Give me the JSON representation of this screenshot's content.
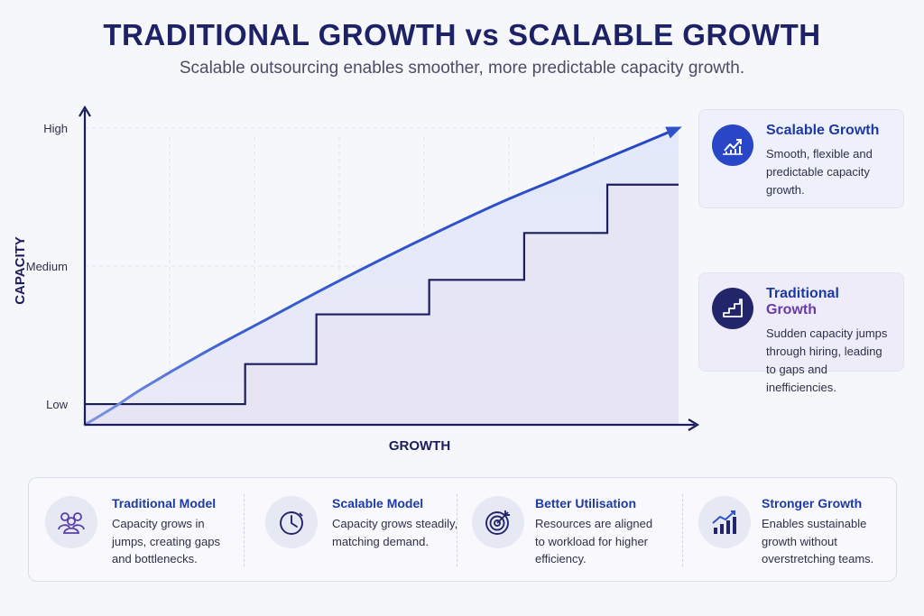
{
  "header": {
    "title": "TRADITIONAL GROWTH vs SCALABLE GROWTH",
    "subtitle": "Scalable outsourcing enables smoother, more predictable capacity growth."
  },
  "chart_data": {
    "type": "line",
    "xlabel": "GROWTH",
    "ylabel": "CAPACITY",
    "y_tick_labels": [
      "Low",
      "Medium",
      "High"
    ],
    "y_tick_values": [
      1,
      2,
      3
    ],
    "xlim": [
      0,
      10
    ],
    "ylim": [
      0.85,
      3.0
    ],
    "grid": true,
    "series": [
      {
        "name": "Scalable Growth",
        "style": "smooth",
        "color": "#2f52c9",
        "x": [
          0,
          0.5,
          1,
          2,
          3,
          4,
          5,
          6,
          7,
          8,
          9,
          10
        ],
        "y": [
          0.85,
          0.98,
          1.12,
          1.37,
          1.6,
          1.83,
          2.05,
          2.26,
          2.46,
          2.64,
          2.82,
          3.0
        ]
      },
      {
        "name": "Traditional Growth",
        "style": "step",
        "color": "#1c1d5e",
        "x": [
          0,
          2.7,
          3.9,
          5.8,
          7.4,
          8.8,
          10
        ],
        "y": [
          1.0,
          1.29,
          1.65,
          1.9,
          2.24,
          2.59,
          2.59
        ]
      }
    ]
  },
  "legend": [
    {
      "title_main": "Scalable Growth",
      "title_accent": "",
      "desc": "Smooth, flexible and predictable capacity growth.",
      "icon": "trend-up-icon",
      "color": "#2946c7"
    },
    {
      "title_main": "Traditional ",
      "title_accent": "Growth",
      "desc": "Sudden capacity jumps through hiring, leading to gaps and inefficiencies.",
      "icon": "stairs-icon",
      "color": "#23256b"
    }
  ],
  "features": [
    {
      "title": "Traditional Model",
      "desc": "Capacity grows in jumps, creating gaps and bottlenecks.",
      "icon": "team-icon"
    },
    {
      "title": "Scalable Model",
      "desc": "Capacity grows steadily, matching demand.",
      "icon": "clock-icon"
    },
    {
      "title": "Better Utilisation",
      "desc": "Resources are aligned to workload for higher efficiency.",
      "icon": "target-icon"
    },
    {
      "title": "Stronger Growth",
      "desc": "Enables sustainable growth without overstretching teams.",
      "icon": "bar-growth-icon"
    }
  ]
}
